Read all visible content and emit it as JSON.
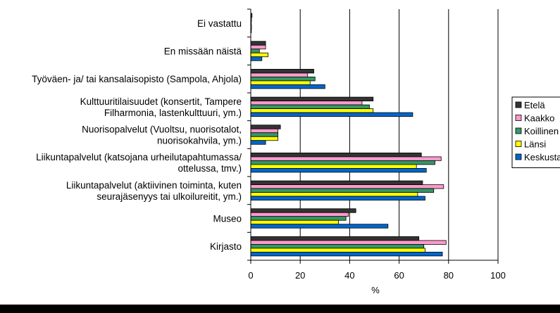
{
  "chart_data": {
    "type": "bar",
    "orientation": "horizontal",
    "xlabel": "%",
    "xlim": [
      0,
      100
    ],
    "xticks": [
      "0",
      "20",
      "40",
      "60",
      "80",
      "100"
    ],
    "grid": true,
    "legend_position": "right",
    "categories": [
      [
        "Ei vastattu"
      ],
      [
        "En missään näistä"
      ],
      [
        "Työväen- ja/ tai kansalaisopisto (Sampola, Ahjola)"
      ],
      [
        "Kulttuuritilaisuudet (konsertit, Tampere",
        "Filharmonia, lastenkulttuuri, ym.)"
      ],
      [
        "Nuorisopalvelut (Vuoltsu, nuorisotalot,",
        "nuorisokahvila, ym.)"
      ],
      [
        "Liikuntapalvelut (katsojana urheilutapahtumassa/",
        "ottelussa, tmv.)"
      ],
      [
        "Liikuntapalvelut (aktiivinen toiminta, kuten",
        "seurajäsenyys tai ulkoilureitit, ym.)"
      ],
      [
        "Museo"
      ],
      [
        "Kirjasto"
      ]
    ],
    "series": [
      {
        "name": "Etelä",
        "color": "#333333",
        "values": [
          0.5,
          6,
          25.5,
          49.5,
          12,
          69,
          69.5,
          42.5,
          68
        ]
      },
      {
        "name": "Kaakko",
        "color": "#ff99cc",
        "values": [
          0.3,
          6,
          23,
          45,
          11,
          77,
          78,
          39.5,
          79
        ]
      },
      {
        "name": "Koillinen",
        "color": "#339966",
        "values": [
          0.2,
          3.5,
          26,
          48,
          11,
          74.5,
          74,
          38.5,
          70
        ]
      },
      {
        "name": "Länsi",
        "color": "#ffff00",
        "values": [
          0.3,
          7,
          24,
          49.5,
          11,
          67,
          67.5,
          35.5,
          70.5
        ]
      },
      {
        "name": "Keskusta",
        "color": "#0066cc",
        "values": [
          0,
          4.5,
          30,
          65.5,
          6,
          71,
          70.5,
          55.5,
          77.5
        ]
      }
    ]
  }
}
